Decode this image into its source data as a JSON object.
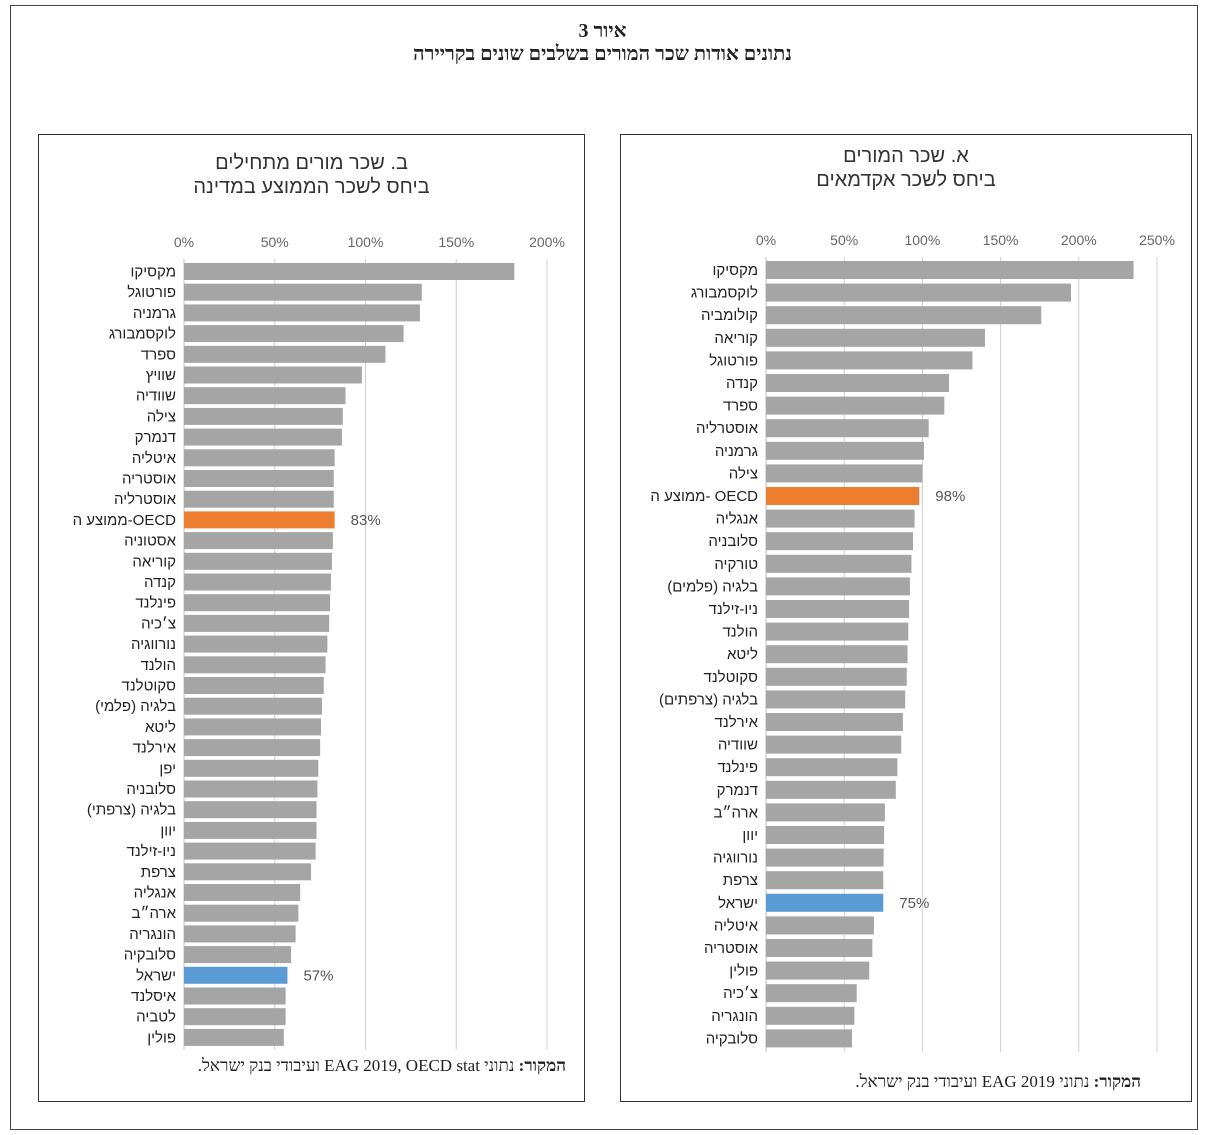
{
  "figure": {
    "title_line1": "איור 3",
    "title_line2": "נתונים אודות שכר המורים בשלבים שונים בקריירה"
  },
  "colors": {
    "bar": "#a5a5a6",
    "oecd": "#ed7d31",
    "israel": "#5b9bd5",
    "grid": "#d0d0d0"
  },
  "panel_a": {
    "title_line1": "א. שכר המורים",
    "title_line2": "ביחס לשכר אקדמאים",
    "source_label": "המקור:",
    "source_text": "נתוני EAG 2019 ועיבודי בנק ישראל."
  },
  "panel_b": {
    "title_line1": "ב. שכר מורים מתחילים",
    "title_line2": "ביחס לשכר הממוצע במדינה",
    "source_label": "המקור:",
    "source_text": "נתוני EAG 2019, OECD stat ועיבודי בנק ישראל."
  },
  "chart_data": [
    {
      "type": "bar",
      "orientation": "horizontal",
      "title": "א. שכר המורים ביחס לשכר אקדמאים",
      "xlim": [
        0,
        250
      ],
      "xticks": [
        "0%",
        "50%",
        "100%",
        "150%",
        "200%",
        "250%"
      ],
      "grid": true,
      "categories": [
        "מקסיקו",
        "לוקסמבורג",
        "קולומביה",
        "קוריאה",
        "פורטוגל",
        "קנדה",
        "ספרד",
        "אוסטרליה",
        "גרמניה",
        "צילה",
        "ממוצע ה- OECD",
        "אנגליה",
        "סלובניה",
        "טורקיה",
        "בלגיה (פלמים)",
        "ניו-זילנד",
        "הולנד",
        "ליטא",
        "סקוטלנד",
        "בלגיה (צרפתים)",
        "אירלנד",
        "שוודיה",
        "פינלנד",
        "דנמרק",
        "ארה״ב",
        "יוון",
        "נורווגיה",
        "צרפת",
        "ישראל",
        "איטליה",
        "אוסטריה",
        "פולין",
        "צ׳כיה",
        "הונגריה",
        "סלובקיה"
      ],
      "values": [
        235,
        195,
        176,
        140,
        132,
        117,
        114,
        104,
        101,
        100,
        98,
        95,
        94,
        93,
        92,
        91.5,
        91,
        90.5,
        90,
        89,
        87.5,
        86.5,
        84,
        83,
        76,
        75.5,
        75.2,
        75,
        75,
        69,
        68,
        66,
        58,
        56.5,
        55
      ],
      "highlights": {
        "ממוצע ה- OECD": "oecd",
        "ישראל": "israel"
      },
      "data_labels": {
        "ממוצע ה- OECD": "98%",
        "ישראל": "75%"
      }
    },
    {
      "type": "bar",
      "orientation": "horizontal",
      "title": "ב. שכר מורים מתחילים ביחס לשכר הממוצע במדינה",
      "xlim": [
        0,
        200
      ],
      "xticks": [
        "0%",
        "50%",
        "100%",
        "150%",
        "200%"
      ],
      "grid": true,
      "categories": [
        "מקסיקו",
        "פורטוגל",
        "גרמניה",
        "לוקסמבורג",
        "ספרד",
        "שוויץ",
        "שוודיה",
        "צילה",
        "דנמרק",
        "איטליה",
        "אוסטריה",
        "אוסטרליה",
        "ממוצע ה-OECD",
        "אסטוניה",
        "קוריאה",
        "קנדה",
        "פינלנד",
        "צ׳כיה",
        "נורווגיה",
        "הולנד",
        "סקוטלנד",
        "בלגיה (פלמי)",
        "ליטא",
        "אירלנד",
        "יפן",
        "סלובניה",
        "בלגיה (צרפתי)",
        "יוון",
        "ניו-זילנד",
        "צרפת",
        "אנגליה",
        "ארה״ב",
        "הונגריה",
        "סלובקיה",
        "ישראל",
        "איסלנד",
        "לטביה",
        "פולין"
      ],
      "values": [
        182,
        131,
        130,
        121,
        111,
        98,
        89,
        87.5,
        87,
        83,
        82.5,
        82.5,
        83,
        82,
        81.5,
        81,
        80.5,
        80,
        79,
        78,
        77,
        76,
        75.5,
        75,
        74,
        73.5,
        73,
        73,
        72.5,
        70,
        64,
        63,
        61.5,
        59,
        57,
        56,
        56,
        55
      ],
      "highlights": {
        "ממוצע ה-OECD": "oecd",
        "ישראל": "israel"
      },
      "data_labels": {
        "ממוצע ה-OECD": "83%",
        "ישראל": "57%"
      }
    }
  ]
}
